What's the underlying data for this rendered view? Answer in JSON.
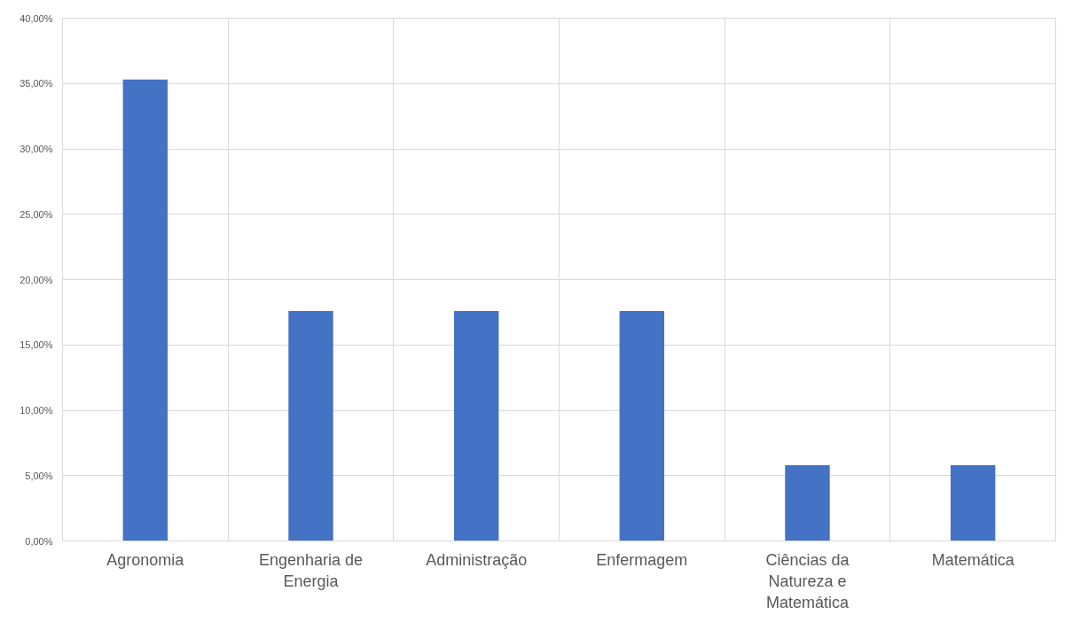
{
  "chart_data": {
    "type": "bar",
    "categories": [
      "Agronomia",
      "Engenharia de Energia",
      "Administração",
      "Enfermagem",
      "Ciências da Natureza e Matemática",
      "Matemática"
    ],
    "values": [
      35.3,
      17.6,
      17.6,
      17.6,
      5.8,
      5.8
    ],
    "color": "#4472c4",
    "ylim": [
      0,
      40
    ],
    "yticks": [
      {
        "value": 0,
        "label": "0,00%"
      },
      {
        "value": 5,
        "label": "5,00%"
      },
      {
        "value": 10,
        "label": "10,00%"
      },
      {
        "value": 15,
        "label": "15,00%"
      },
      {
        "value": 20,
        "label": "20,00%"
      },
      {
        "value": 25,
        "label": "25,00%"
      },
      {
        "value": 30,
        "label": "30,00%"
      },
      {
        "value": 35,
        "label": "35,00%"
      },
      {
        "value": 40,
        "label": "40,00%"
      }
    ],
    "grid": true
  }
}
